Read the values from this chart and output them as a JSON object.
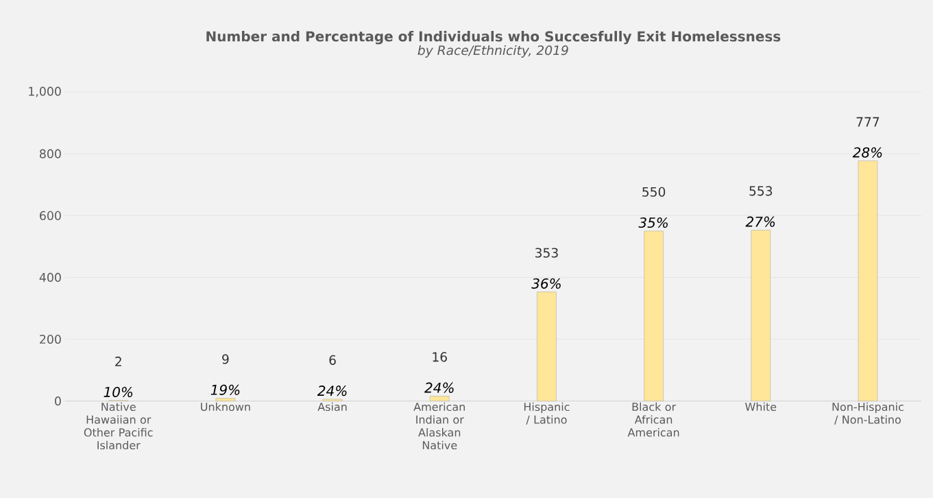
{
  "chart_data": {
    "type": "bar",
    "title": "Number and Percentage of Individuals who Succesfully Exit Homelessness",
    "subtitle": "by Race/Ethnicity, 2019",
    "categories": [
      "Native Hawaiian or Other Pacific Islander",
      "Unknown",
      "Asian",
      "American Indian or Alaskan Native",
      "Hispanic / Latino",
      "Black or African American",
      "White",
      "Non-Hispanic / Non-Latino"
    ],
    "values": [
      2,
      9,
      6,
      16,
      353,
      550,
      553,
      777
    ],
    "color": "#ffe699",
    "data_labels": true,
    "annotations": [
      {
        "text": "10%",
        "x": "Native Hawaiian or Other Pacific Islander",
        "y": 2
      },
      {
        "text": "19%",
        "x": "Unknown",
        "y": 9
      },
      {
        "text": "24%",
        "x": "Asian",
        "y": 6
      },
      {
        "text": "24%",
        "x": "American Indian or Alaskan Native",
        "y": 16
      },
      {
        "text": "36%",
        "x": "Hispanic / Latino",
        "y": 353
      },
      {
        "text": "35%",
        "x": "Black or African American",
        "y": 550
      },
      {
        "text": "27%",
        "x": "White",
        "y": 553
      },
      {
        "text": "28%",
        "x": "Non-Hispanic / Non-Latino",
        "y": 777
      }
    ],
    "ylim": [
      0,
      1000
    ],
    "yticks": [
      0,
      200,
      400,
      600,
      800,
      {
        "value": 1000,
        "label": "1,000"
      }
    ],
    "grid": "y"
  }
}
